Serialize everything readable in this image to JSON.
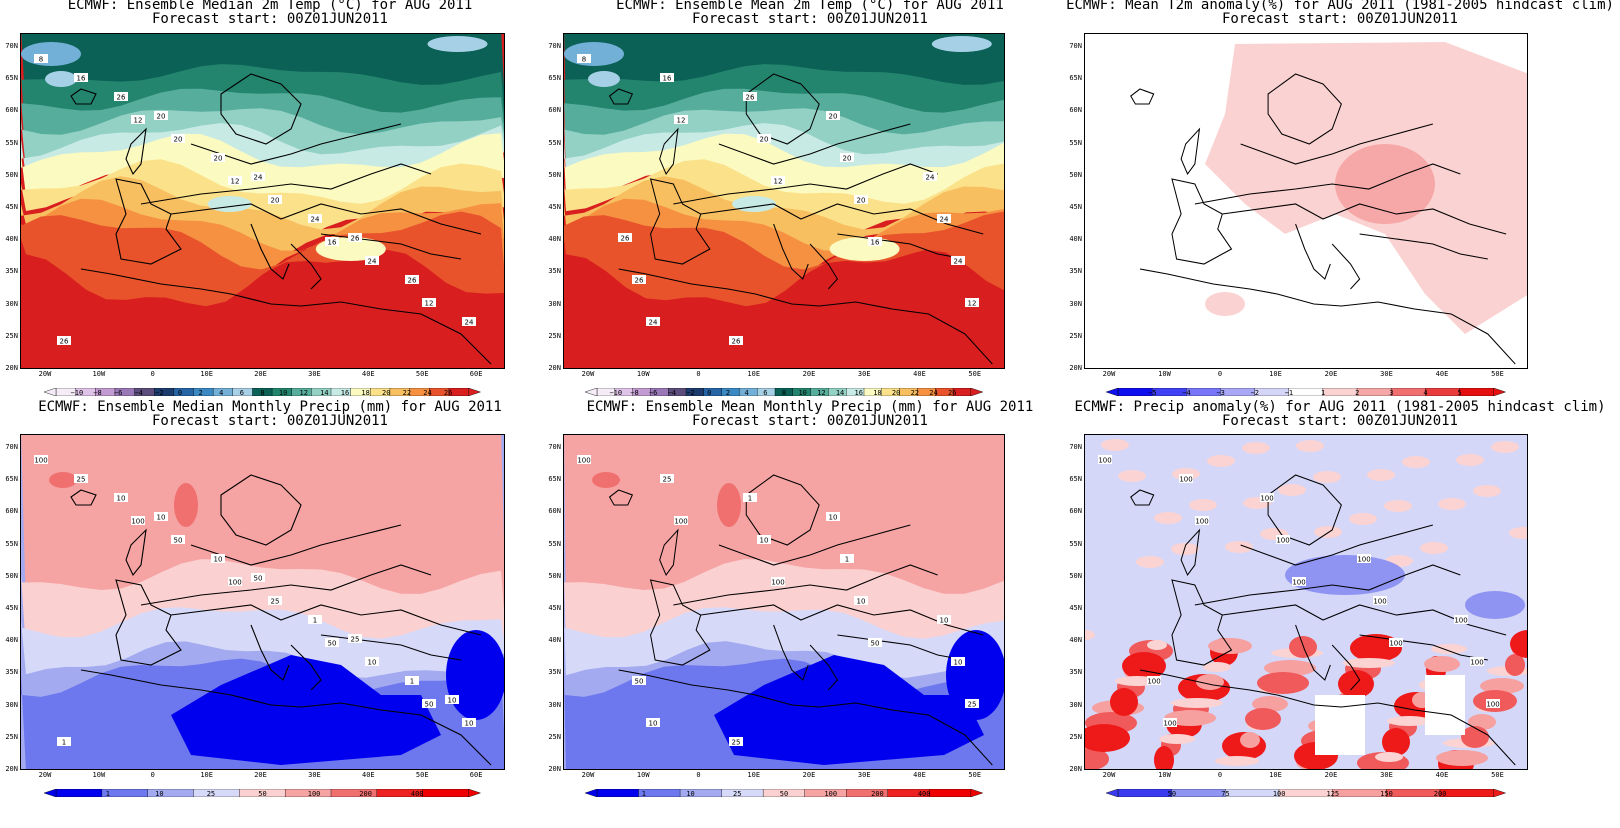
{
  "panels": [
    {
      "id": "temp-median",
      "title1": "ECMWF: Ensemble Median 2m Temp (°C) for AUG 2011",
      "title2": "Forecast start: 00Z01JUN2011",
      "lon_labels": [
        "20W",
        "10W",
        "0",
        "10E",
        "20E",
        "30E",
        "40E",
        "50E",
        "60E"
      ],
      "colorbar_labels": [
        "−10",
        "−8",
        "−6",
        "−4",
        "−2",
        "0",
        "2",
        "4",
        "6",
        "8",
        "10",
        "12",
        "14",
        "16",
        "18",
        "20",
        "22",
        "24",
        "26"
      ],
      "contour_labels": [
        "8",
        "12",
        "12",
        "16",
        "12",
        "16",
        "20",
        "20",
        "24",
        "24",
        "26",
        "20",
        "24",
        "26",
        "26",
        "20",
        "24",
        "26"
      ]
    },
    {
      "id": "temp-mean",
      "title1": "ECMWF: Ensemble Mean 2m Temp (°C) for AUG 2011",
      "title2": "Forecast start: 00Z01JUN2011",
      "lon_labels": [
        "20W",
        "10W",
        "0",
        "10E",
        "20E",
        "30E",
        "40E",
        "50E"
      ],
      "colorbar_labels": [
        "−10",
        "−8",
        "−6",
        "−4",
        "−2",
        "0",
        "2",
        "4",
        "6",
        "8",
        "10",
        "12",
        "14",
        "16",
        "18",
        "20",
        "22",
        "24",
        "26"
      ],
      "contour_labels": [
        "8",
        "12",
        "12",
        "16",
        "12",
        "16",
        "20",
        "20",
        "24",
        "24",
        "26",
        "20",
        "24",
        "26",
        "26",
        "20",
        "24",
        "26"
      ]
    },
    {
      "id": "temp-anom",
      "title1": "ECMWF: Mean T2m anomaly(%) for AUG 2011 (1981-2005 hindcast clim)",
      "title2": "Forecast start: 00Z01JUN2011",
      "lon_labels": [
        "20W",
        "10W",
        "0",
        "10E",
        "20E",
        "30E",
        "40E",
        "50E"
      ],
      "colorbar_labels": [
        "−5",
        "−4",
        "−3",
        "−2",
        "−1",
        "1",
        "2",
        "3",
        "4",
        "5"
      ],
      "contour_labels": []
    },
    {
      "id": "precip-median",
      "title1": "ECMWF: Ensemble Median Monthly Precip (mm) for AUG 2011",
      "title2": "Forecast start: 00Z01JUN2011",
      "lon_labels": [
        "20W",
        "10W",
        "0",
        "10E",
        "20E",
        "30E",
        "40E",
        "50E",
        "60E"
      ],
      "colorbar_labels": [
        "1",
        "10",
        "25",
        "50",
        "100",
        "200",
        "400"
      ],
      "contour_labels": [
        "100",
        "100",
        "100",
        "50",
        "50",
        "25",
        "50",
        "25",
        "10",
        "10",
        "10",
        "10",
        "1",
        "1",
        "1",
        "10",
        "50",
        "25",
        "10"
      ]
    },
    {
      "id": "precip-mean",
      "title1": "ECMWF: Ensemble Mean Monthly Precip (mm) for AUG 2011",
      "title2": "Forecast start: 00Z01JUN2011",
      "lon_labels": [
        "20W",
        "10W",
        "0",
        "10E",
        "20E",
        "30E",
        "40E",
        "50E"
      ],
      "colorbar_labels": [
        "1",
        "10",
        "25",
        "50",
        "100",
        "200",
        "400"
      ],
      "contour_labels": [
        "100",
        "100",
        "100",
        "50",
        "25",
        "25",
        "10",
        "10",
        "10",
        "10",
        "1",
        "1",
        "10",
        "50",
        "25",
        "10"
      ]
    },
    {
      "id": "precip-anom",
      "title1": "ECMWF: Precip anomaly(%) for AUG 2011 (1981-2005 hindcast clim)",
      "title2": "Forecast start: 00Z01JUN2011",
      "lon_labels": [
        "20W",
        "10W",
        "0",
        "10E",
        "20E",
        "30E",
        "40E",
        "50E"
      ],
      "colorbar_labels": [
        "50",
        "75",
        "100",
        "125",
        "150",
        "200"
      ],
      "contour_labels": [
        "100",
        "100",
        "100",
        "100",
        "100",
        "100",
        "100",
        "100",
        "100",
        "100",
        "100",
        "100",
        "100",
        "100"
      ]
    }
  ],
  "lat_labels": [
    "70N",
    "65N",
    "60N",
    "55N",
    "50N",
    "45N",
    "40N",
    "35N",
    "30N",
    "25N",
    "20N"
  ],
  "colors": {
    "temp": [
      "#f5ecf7",
      "#e0c3e8",
      "#c39bd3",
      "#9a78b8",
      "#5c4d7d",
      "#1d3c6e",
      "#2565a5",
      "#3b89c3",
      "#73b0d8",
      "#a6d0e6",
      "#0b6155",
      "#24856f",
      "#57ad9c",
      "#93d1c4",
      "#c8eae4",
      "#fbfac0",
      "#fbe189",
      "#f8bf61",
      "#f59141",
      "#e8532b",
      "#d81e1e"
    ],
    "temp_anom": [
      "#1010ee",
      "#4040f4",
      "#7676f6",
      "#a8a8f6",
      "#d5d5f8",
      "#ffffff",
      "#fbd2d2",
      "#f6a8a8",
      "#f07070",
      "#ea3c3c",
      "#e41010"
    ],
    "precip": [
      "#0000ee",
      "#6e78ee",
      "#a3aaf0",
      "#d6daf8",
      "#fbd0d0",
      "#f6a3a3",
      "#f07070",
      "#ee2222",
      "#ee0000"
    ],
    "precip_anom": [
      "#3a3aef",
      "#8f94f2",
      "#d4d7f8",
      "#fbd3d3",
      "#f6a0a0",
      "#f05a5a",
      "#ee1a1a"
    ]
  }
}
